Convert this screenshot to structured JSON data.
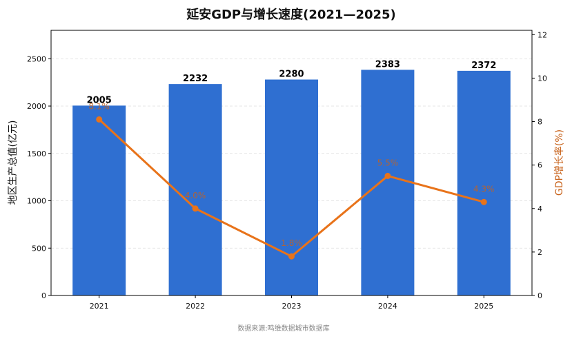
{
  "chart_data": {
    "type": "bar",
    "title": "延安GDP与增长速度(2021—2025)",
    "categories": [
      "2021",
      "2022",
      "2023",
      "2024",
      "2025"
    ],
    "series": [
      {
        "name": "",
        "type": "bar",
        "axis": "left",
        "values": [
          2005,
          2232,
          2280,
          2383,
          2372
        ],
        "labels": [
          "2005",
          "2232",
          "2280",
          "2383",
          "2372"
        ]
      },
      {
        "name": "",
        "type": "line",
        "axis": "right",
        "values": [
          8.1,
          4.0,
          1.8,
          5.5,
          4.3
        ],
        "labels": [
          "8.1%",
          "4.0%",
          "1.8%",
          "5.5%",
          "4.3%"
        ]
      }
    ],
    "ylabel": "地区生产总值(亿元)",
    "ylabel_right": "GDP增长率(%)",
    "ylim": [
      0,
      2800
    ],
    "ylim_right": [
      0,
      12.2
    ],
    "yticks": [
      0,
      500,
      1000,
      1500,
      2000,
      2500
    ],
    "yticks_right": [
      0,
      2,
      4,
      6,
      8,
      10,
      12
    ],
    "grid": "horizontal dashed",
    "source": "数据来源:鸣维数据城市数据库",
    "colors": {
      "bar": "#2f6fd1",
      "line": "#e8731a",
      "right_axis_label": "#c8621a",
      "bar_label": "#000000"
    }
  }
}
